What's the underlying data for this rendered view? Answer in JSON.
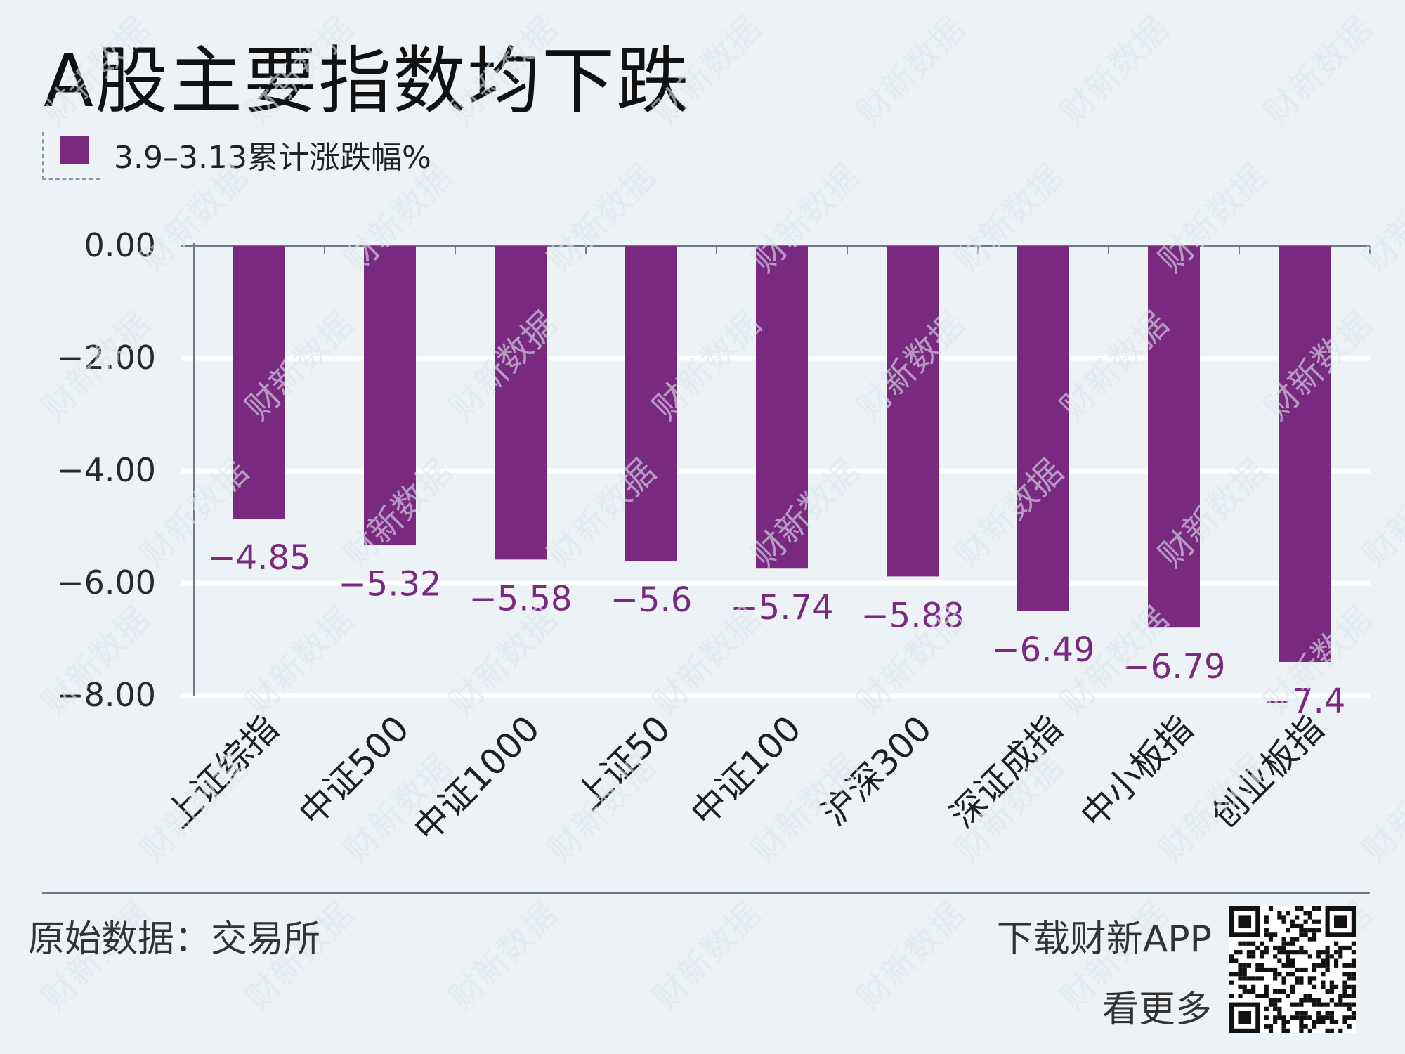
{
  "title": "A股主要指数均下跌",
  "legend_label": "3.9–3.13累计涨跌幅%",
  "source": "原始数据：交易所",
  "app_promo": {
    "line1": "下载财新APP",
    "line2": "看更多"
  },
  "watermark": "财新数据",
  "qr_icon": "qr-code-icon",
  "colors": {
    "bar": "#792a80",
    "label": "#792a80",
    "background": "#ecf2f5",
    "grid": "#ffffff",
    "axis": "#6f7a82"
  },
  "chart_data": {
    "type": "bar",
    "categories": [
      "上证综指",
      "中证500",
      "中证1000",
      "上证50",
      "中证100",
      "沪深300",
      "深证成指",
      "中小板指",
      "创业板指"
    ],
    "series": [
      {
        "name": "3.9–3.13累计涨跌幅%",
        "values": [
          -4.85,
          -5.32,
          -5.58,
          -5.6,
          -5.74,
          -5.88,
          -6.49,
          -6.79,
          -7.4
        ]
      }
    ],
    "data_labels": [
      "−4.85",
      "−5.32",
      "−5.58",
      "−5.6",
      "−5.74",
      "−5.88",
      "−6.49",
      "−6.79",
      "−7.4"
    ],
    "ylim": [
      -8,
      0
    ],
    "yticks": [
      0,
      -2,
      -4,
      -6,
      -8
    ],
    "ytick_labels": [
      "0.00",
      "−2.00",
      "−4.00",
      "−6.00",
      "−8.00"
    ],
    "grid": true,
    "legend_position": "top-left"
  }
}
